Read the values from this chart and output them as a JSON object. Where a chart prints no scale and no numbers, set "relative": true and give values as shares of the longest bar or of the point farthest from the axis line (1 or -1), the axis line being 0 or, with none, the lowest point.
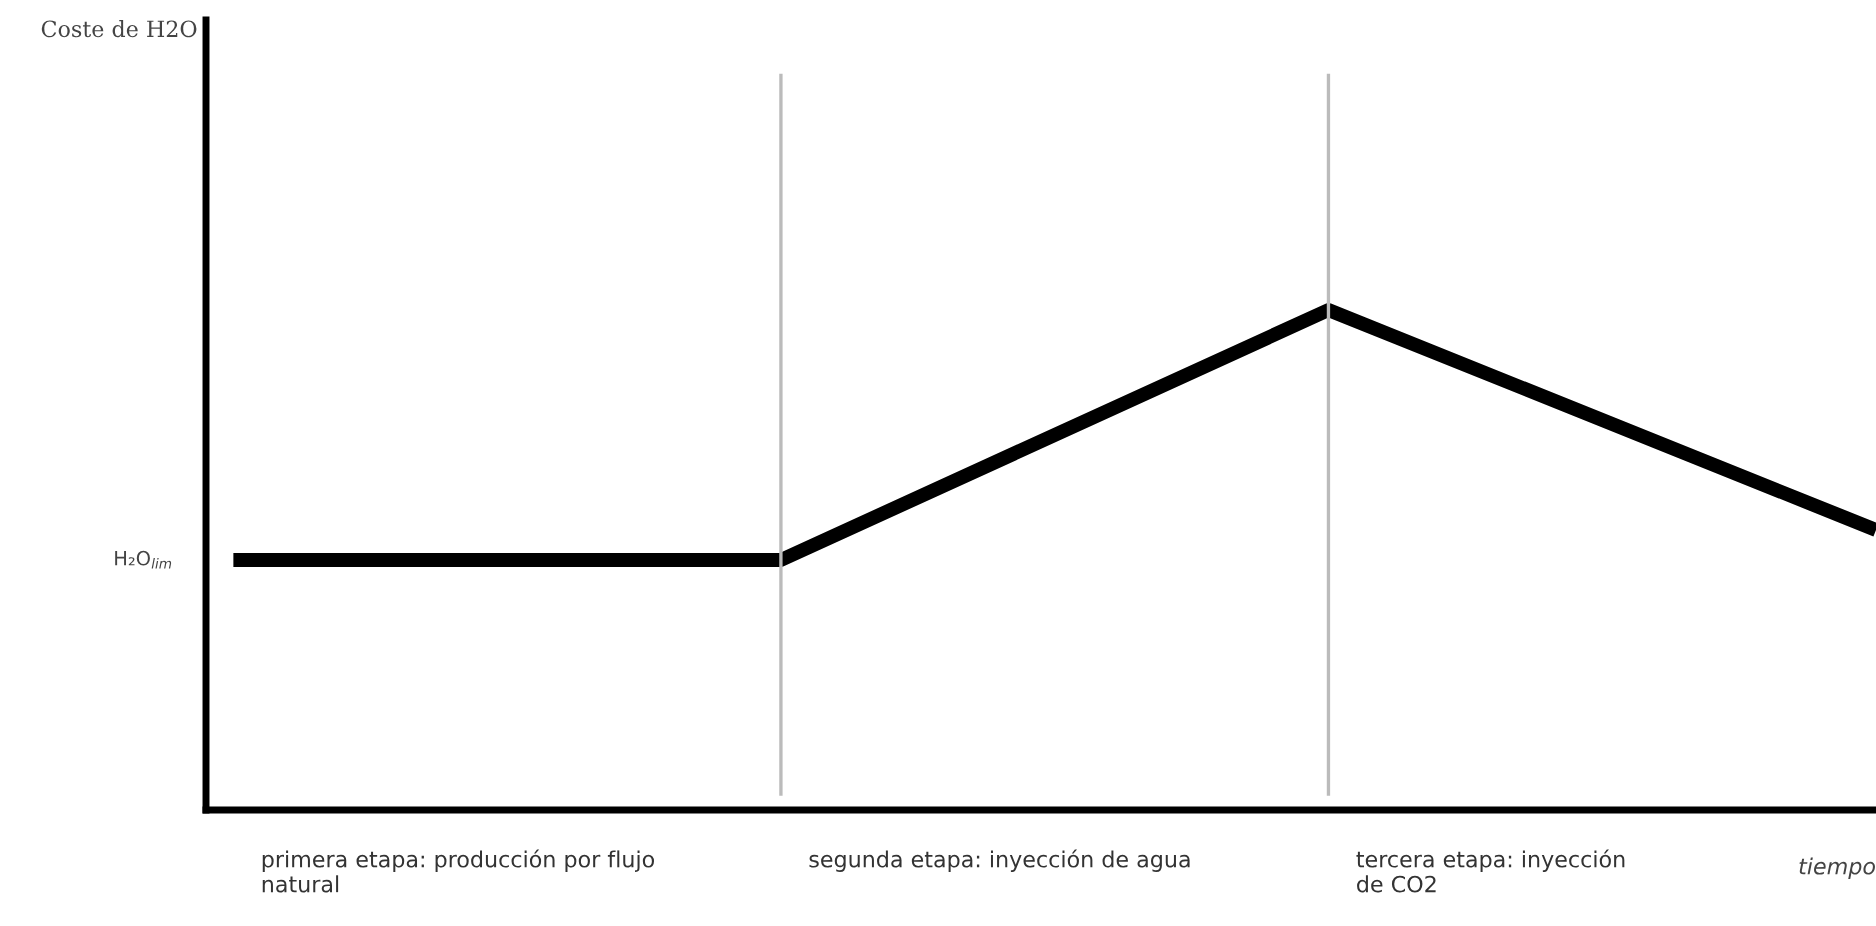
{
  "chart_data": {
    "type": "line",
    "relative": true,
    "xlabel": "tiempo",
    "categories": [
      null,
      null,
      null,
      null
    ],
    "series": [
      {
        "color": "#000000",
        "values": [
          0.5,
          0.5,
          1,
          0.56
        ]
      }
    ],
    "annotations": [
      "Coste de H2O",
      "H₂O$_{lim}$",
      "primera etapa: producción por flujo\nnatural",
      "segunda etapa: inyección de agua",
      "tercera etapa: inyección\nde CO2"
    ],
    "marker": "none",
    "line_style": "solid",
    "legend": false
  }
}
